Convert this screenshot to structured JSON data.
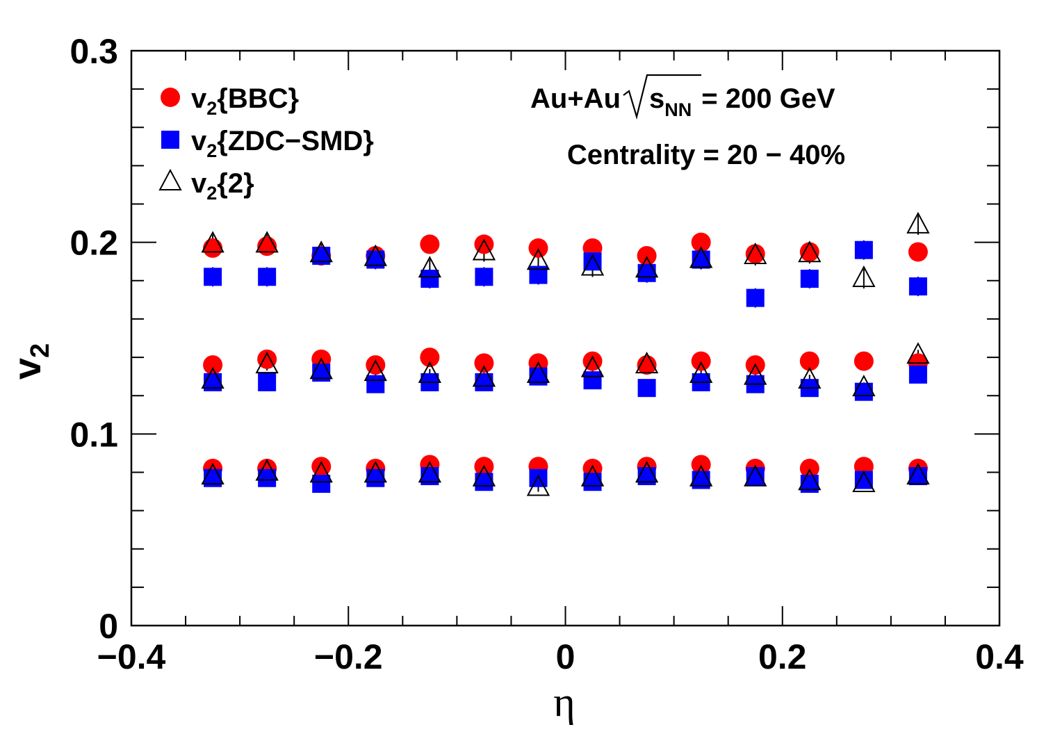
{
  "chart_data": {
    "type": "scatter",
    "xlabel": "η",
    "ylabel": "v",
    "ylabel_sub": "2",
    "xlim": [
      -0.4,
      0.4
    ],
    "ylim": [
      0,
      0.3
    ],
    "x_major_ticks": [
      -0.4,
      -0.2,
      0,
      0.2,
      0.4
    ],
    "x_tick_labels": [
      "−0.4",
      "−0.2",
      "0",
      "0.2",
      "0.4"
    ],
    "y_major_ticks": [
      0,
      0.1,
      0.2,
      0.3
    ],
    "y_tick_labels": [
      "0",
      "0.1",
      "0.2",
      "0.3"
    ],
    "grid": false,
    "legend_position": "top-left",
    "annotation": {
      "system": "Au+Au",
      "energy_symbol": "s",
      "energy_sub": "NN",
      "energy_value": "= 200 GeV",
      "centrality": "Centrality = 20 − 40%"
    },
    "x": [
      -0.325,
      -0.275,
      -0.225,
      -0.175,
      -0.125,
      -0.075,
      -0.025,
      0.025,
      0.075,
      0.125,
      0.175,
      0.225,
      0.275,
      0.325
    ],
    "series": [
      {
        "name": "v",
        "name_sub": "2",
        "name_rest": "{BBC}",
        "marker": "circle",
        "color": "#ff0000",
        "groups": [
          [
            0.197,
            0.198,
            0.193,
            0.193,
            0.199,
            0.199,
            0.197,
            0.197,
            0.193,
            0.2,
            0.194,
            0.195,
            null,
            0.195
          ],
          [
            0.136,
            0.139,
            0.139,
            0.136,
            0.14,
            0.137,
            0.137,
            0.138,
            0.136,
            0.138,
            0.136,
            0.138,
            0.138,
            0.137
          ],
          [
            0.082,
            0.082,
            0.083,
            0.082,
            0.084,
            0.083,
            0.083,
            0.082,
            0.083,
            0.084,
            0.082,
            0.082,
            0.083,
            0.082
          ]
        ]
      },
      {
        "name": "v",
        "name_sub": "2",
        "name_rest": "{ZDC−SMD}",
        "marker": "square",
        "color": "#0000ff",
        "groups": [
          [
            0.182,
            0.182,
            0.193,
            0.191,
            0.181,
            0.182,
            0.183,
            0.19,
            0.184,
            0.191,
            0.171,
            0.181,
            0.196,
            0.177
          ],
          [
            0.127,
            0.127,
            0.132,
            0.126,
            0.127,
            0.127,
            0.13,
            0.128,
            0.124,
            0.127,
            0.126,
            0.124,
            0.122,
            0.131
          ],
          [
            0.077,
            0.077,
            0.074,
            0.077,
            0.078,
            0.075,
            0.077,
            0.075,
            0.078,
            0.076,
            0.078,
            0.074,
            0.076,
            0.078
          ]
        ]
      },
      {
        "name": "v",
        "name_sub": "2",
        "name_rest": "{2}",
        "marker": "open-triangle",
        "color": "#000000",
        "groups": [
          [
            0.199,
            0.199,
            0.194,
            0.192,
            0.186,
            0.195,
            0.19,
            0.187,
            0.186,
            0.191,
            0.193,
            0.194,
            0.181,
            0.209
          ],
          [
            0.128,
            0.136,
            0.133,
            0.132,
            0.131,
            0.129,
            0.131,
            0.134,
            0.136,
            0.131,
            0.13,
            0.128,
            0.124,
            0.141
          ],
          [
            0.078,
            0.08,
            0.079,
            0.079,
            0.079,
            0.077,
            0.072,
            0.077,
            0.079,
            0.077,
            0.077,
            0.075,
            0.074,
            0.078
          ]
        ]
      }
    ]
  }
}
